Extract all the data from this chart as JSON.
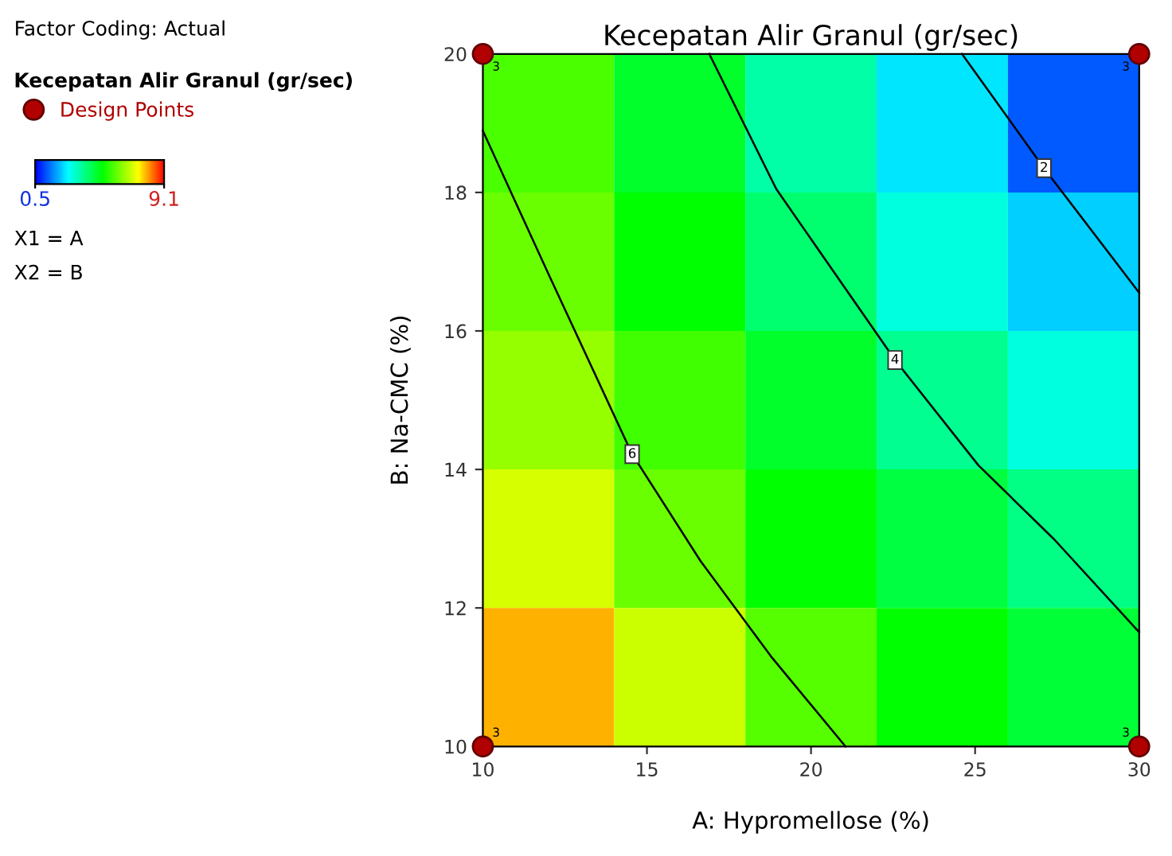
{
  "chart_data": {
    "type": "heatmap",
    "title": "Kecepatan Alir Granul (gr/sec)",
    "xlabel": "A: Hypromellose (%)",
    "ylabel": "B: Na-CMC (%)",
    "legend_title": "Kecepatan Alir Granul (gr/sec)",
    "legend": "top left",
    "cells": [
      [
        5.7,
        4.6,
        3.5,
        2.5,
        1.3
      ],
      [
        6.0,
        5.0,
        4.0,
        3.0,
        2.3
      ],
      [
        6.4,
        5.6,
        4.6,
        3.7,
        3.0
      ],
      [
        7.0,
        6.0,
        5.0,
        4.4,
        3.8
      ],
      [
        7.9,
        6.9,
        5.8,
        5.0,
        4.5
      ]
    ],
    "clim": [
      0.5,
      9.1
    ],
    "cticks": [
      0.5,
      9.1
    ],
    "xlim": [
      10,
      30
    ],
    "ylim": [
      10,
      20
    ],
    "xticks": [
      10,
      15,
      20,
      25,
      30
    ],
    "yticks": [
      10,
      12,
      14,
      16,
      18,
      20
    ],
    "series": [
      {
        "type": "line",
        "color": "#000000",
        "x": [
          10,
          12.0,
          14.55,
          16.63,
          18.78,
          21.05
        ],
        "values": [
          18.89,
          16.82,
          14.22,
          12.68,
          11.3,
          10
        ]
      },
      {
        "type": "line",
        "color": "#000000",
        "x": [
          16.9,
          18.94,
          22.56,
          25.1,
          27.41,
          30
        ],
        "values": [
          20,
          18.05,
          15.58,
          14.06,
          12.99,
          11.65
        ]
      },
      {
        "type": "line",
        "color": "#000000",
        "x": [
          24.6,
          27.1,
          30
        ],
        "values": [
          20,
          18.35,
          16.55
        ]
      },
      {
        "type": "scatter",
        "name": "Design Points",
        "color": "#b00000",
        "marker": "circle",
        "x": [
          10,
          10,
          30,
          30
        ],
        "values": [
          10,
          20,
          10,
          20
        ]
      }
    ],
    "annotations": [
      "Factor Coding: Actual",
      "X1 = A",
      "X2 = B",
      {
        "text": "3",
        "x": 10,
        "y": 10
      },
      {
        "text": "3",
        "x": 10,
        "y": 20
      },
      {
        "text": "3",
        "x": 30,
        "y": 10
      },
      {
        "text": "3",
        "x": 30,
        "y": 20
      },
      {
        "text": "6",
        "x": 14.55,
        "y": 14.22
      },
      {
        "text": "4",
        "x": 22.56,
        "y": 15.58
      },
      {
        "text": "2",
        "x": 27.1,
        "y": 18.35
      }
    ]
  }
}
